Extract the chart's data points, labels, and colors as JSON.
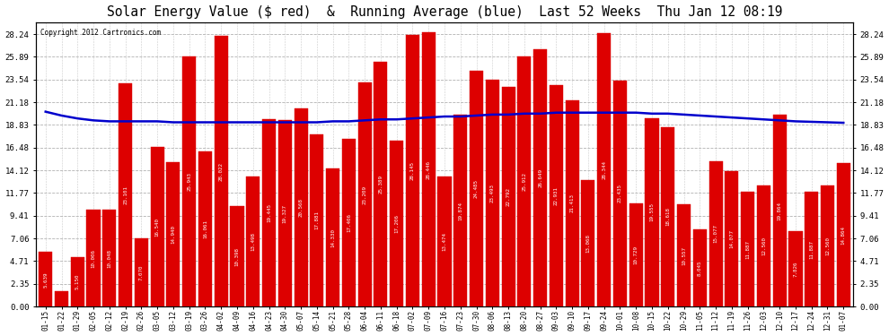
{
  "title": "Solar Energy Value ($ red)  &  Running Average (blue)  Last 52 Weeks  Thu Jan 12 08:19",
  "copyright": "Copyright 2012 Cartronics.com",
  "bar_color": "#dd0000",
  "avg_color": "#0000cc",
  "background_color": "#ffffff",
  "plot_bg_color": "#ffffff",
  "grid_color": "#aaaaaa",
  "xlabels": [
    "01-15",
    "01-22",
    "01-29",
    "02-05",
    "02-12",
    "02-19",
    "02-26",
    "03-05",
    "03-12",
    "03-19",
    "03-26",
    "04-02",
    "04-09",
    "04-16",
    "04-23",
    "04-30",
    "05-07",
    "05-14",
    "05-21",
    "05-28",
    "06-04",
    "06-11",
    "06-18",
    "07-02",
    "07-09",
    "07-16",
    "07-23",
    "07-30",
    "08-06",
    "08-13",
    "08-20",
    "08-27",
    "09-03",
    "09-10",
    "09-17",
    "09-24",
    "10-01",
    "10-08",
    "10-15",
    "10-22",
    "10-29",
    "11-05",
    "11-12",
    "11-19",
    "11-26",
    "12-03",
    "12-10",
    "12-17",
    "12-24",
    "12-31",
    "01-07"
  ],
  "bar_values": [
    5.639,
    1.577,
    5.15,
    10.006,
    10.048,
    23.101,
    7.07,
    16.54,
    14.94,
    25.943,
    16.061,
    28.022,
    10.398,
    13.498,
    19.445,
    19.327,
    20.568,
    17.881,
    14.33,
    17.406,
    23.209,
    25.389,
    17.206,
    28.145,
    28.446,
    13.474,
    19.874,
    24.485,
    23.493,
    22.792,
    25.912,
    26.649,
    22.931,
    21.413,
    13.068,
    28.344,
    23.435,
    10.729,
    19.555,
    18.618,
    10.557,
    8.045,
    15.077,
    14.077,
    11.887,
    12.56,
    19.864,
    7.826,
    11.887,
    12.56,
    14.864
  ],
  "avg_values": [
    20.2,
    19.8,
    19.5,
    19.3,
    19.2,
    19.2,
    19.2,
    19.2,
    19.1,
    19.1,
    19.1,
    19.1,
    19.1,
    19.1,
    19.1,
    19.1,
    19.1,
    19.1,
    19.2,
    19.2,
    19.3,
    19.4,
    19.4,
    19.5,
    19.6,
    19.7,
    19.7,
    19.8,
    19.9,
    19.9,
    20.0,
    20.0,
    20.1,
    20.1,
    20.1,
    20.1,
    20.1,
    20.1,
    20.0,
    20.0,
    19.9,
    19.8,
    19.7,
    19.6,
    19.5,
    19.4,
    19.3,
    19.2,
    19.15,
    19.1,
    19.05
  ],
  "yticks": [
    0.0,
    2.35,
    4.71,
    7.06,
    9.41,
    11.77,
    14.12,
    16.48,
    18.83,
    21.18,
    23.54,
    25.89,
    28.24
  ],
  "ymax": 29.5,
  "ymin": 0.0
}
